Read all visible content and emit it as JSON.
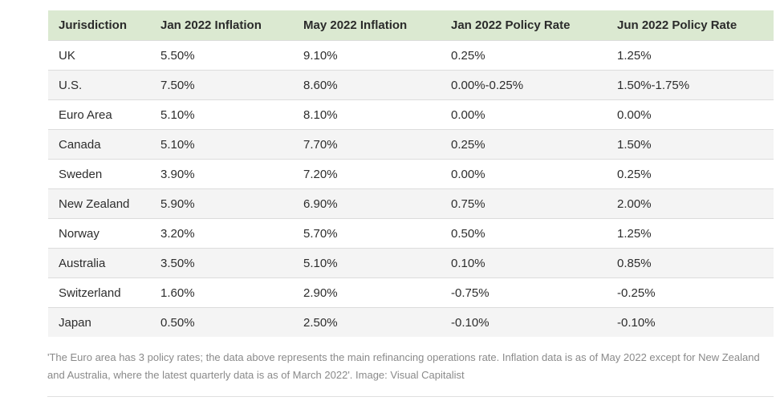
{
  "table": {
    "headers": [
      "Jurisdiction",
      "Jan 2022 Inflation",
      "May 2022 Inflation",
      "Jan 2022 Policy Rate",
      "Jun 2022 Policy Rate"
    ],
    "rows": [
      [
        "UK",
        "5.50%",
        "9.10%",
        "0.25%",
        "1.25%"
      ],
      [
        "U.S.",
        "7.50%",
        "8.60%",
        "0.00%-0.25%",
        "1.50%-1.75%"
      ],
      [
        "Euro Area",
        "5.10%",
        "8.10%",
        "0.00%",
        "0.00%"
      ],
      [
        "Canada",
        "5.10%",
        "7.70%",
        "0.25%",
        "1.50%"
      ],
      [
        "Sweden",
        "3.90%",
        "7.20%",
        "0.00%",
        "0.25%"
      ],
      [
        "New Zealand",
        "5.90%",
        "6.90%",
        "0.75%",
        "2.00%"
      ],
      [
        "Norway",
        "3.20%",
        "5.70%",
        "0.50%",
        "1.25%"
      ],
      [
        "Australia",
        "3.50%",
        "5.10%",
        "0.10%",
        "0.85%"
      ],
      [
        "Switzerland",
        "1.60%",
        "2.90%",
        "-0.75%",
        "-0.25%"
      ],
      [
        "Japan",
        "0.50%",
        "2.50%",
        "-0.10%",
        "-0.10%"
      ]
    ]
  },
  "caption": "'The Euro area has 3 policy rates; the data above represents the main refinancing operations rate. Inflation data is as of May 2022 except for New Zealand and Australia, where the latest quarterly data is as of March 2022'. Image: Visual Capitalist",
  "colors": {
    "header_bg": "#dbe9d1",
    "stripe_bg": "#f4f4f4",
    "caption_text": "#8a8a8a"
  }
}
